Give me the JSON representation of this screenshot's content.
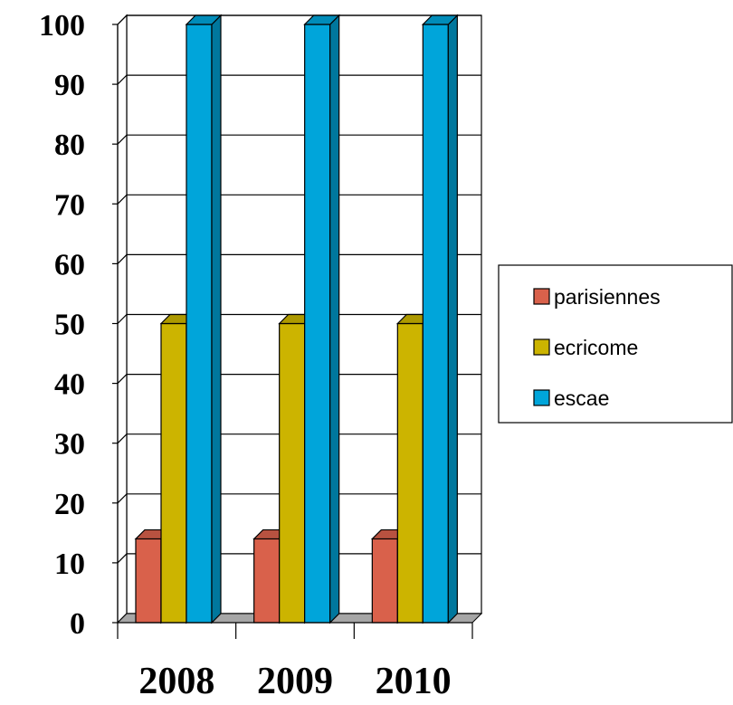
{
  "chart_data": {
    "type": "bar",
    "categories": [
      "2008",
      "2009",
      "2010"
    ],
    "series": [
      {
        "name": "parisiennes",
        "values": [
          14,
          14,
          14
        ],
        "color": "#d9614b"
      },
      {
        "name": "ecricome",
        "values": [
          50,
          50,
          50
        ],
        "color": "#ccb400"
      },
      {
        "name": "escae",
        "values": [
          100,
          100,
          100
        ],
        "color": "#00a5da"
      }
    ],
    "ylim": [
      0,
      100
    ],
    "yticks": [
      "0",
      "10",
      "20",
      "30",
      "40",
      "50",
      "60",
      "70",
      "80",
      "90",
      "100"
    ],
    "grid": true,
    "legend_position": "right",
    "style": "3d-clustered-column"
  }
}
